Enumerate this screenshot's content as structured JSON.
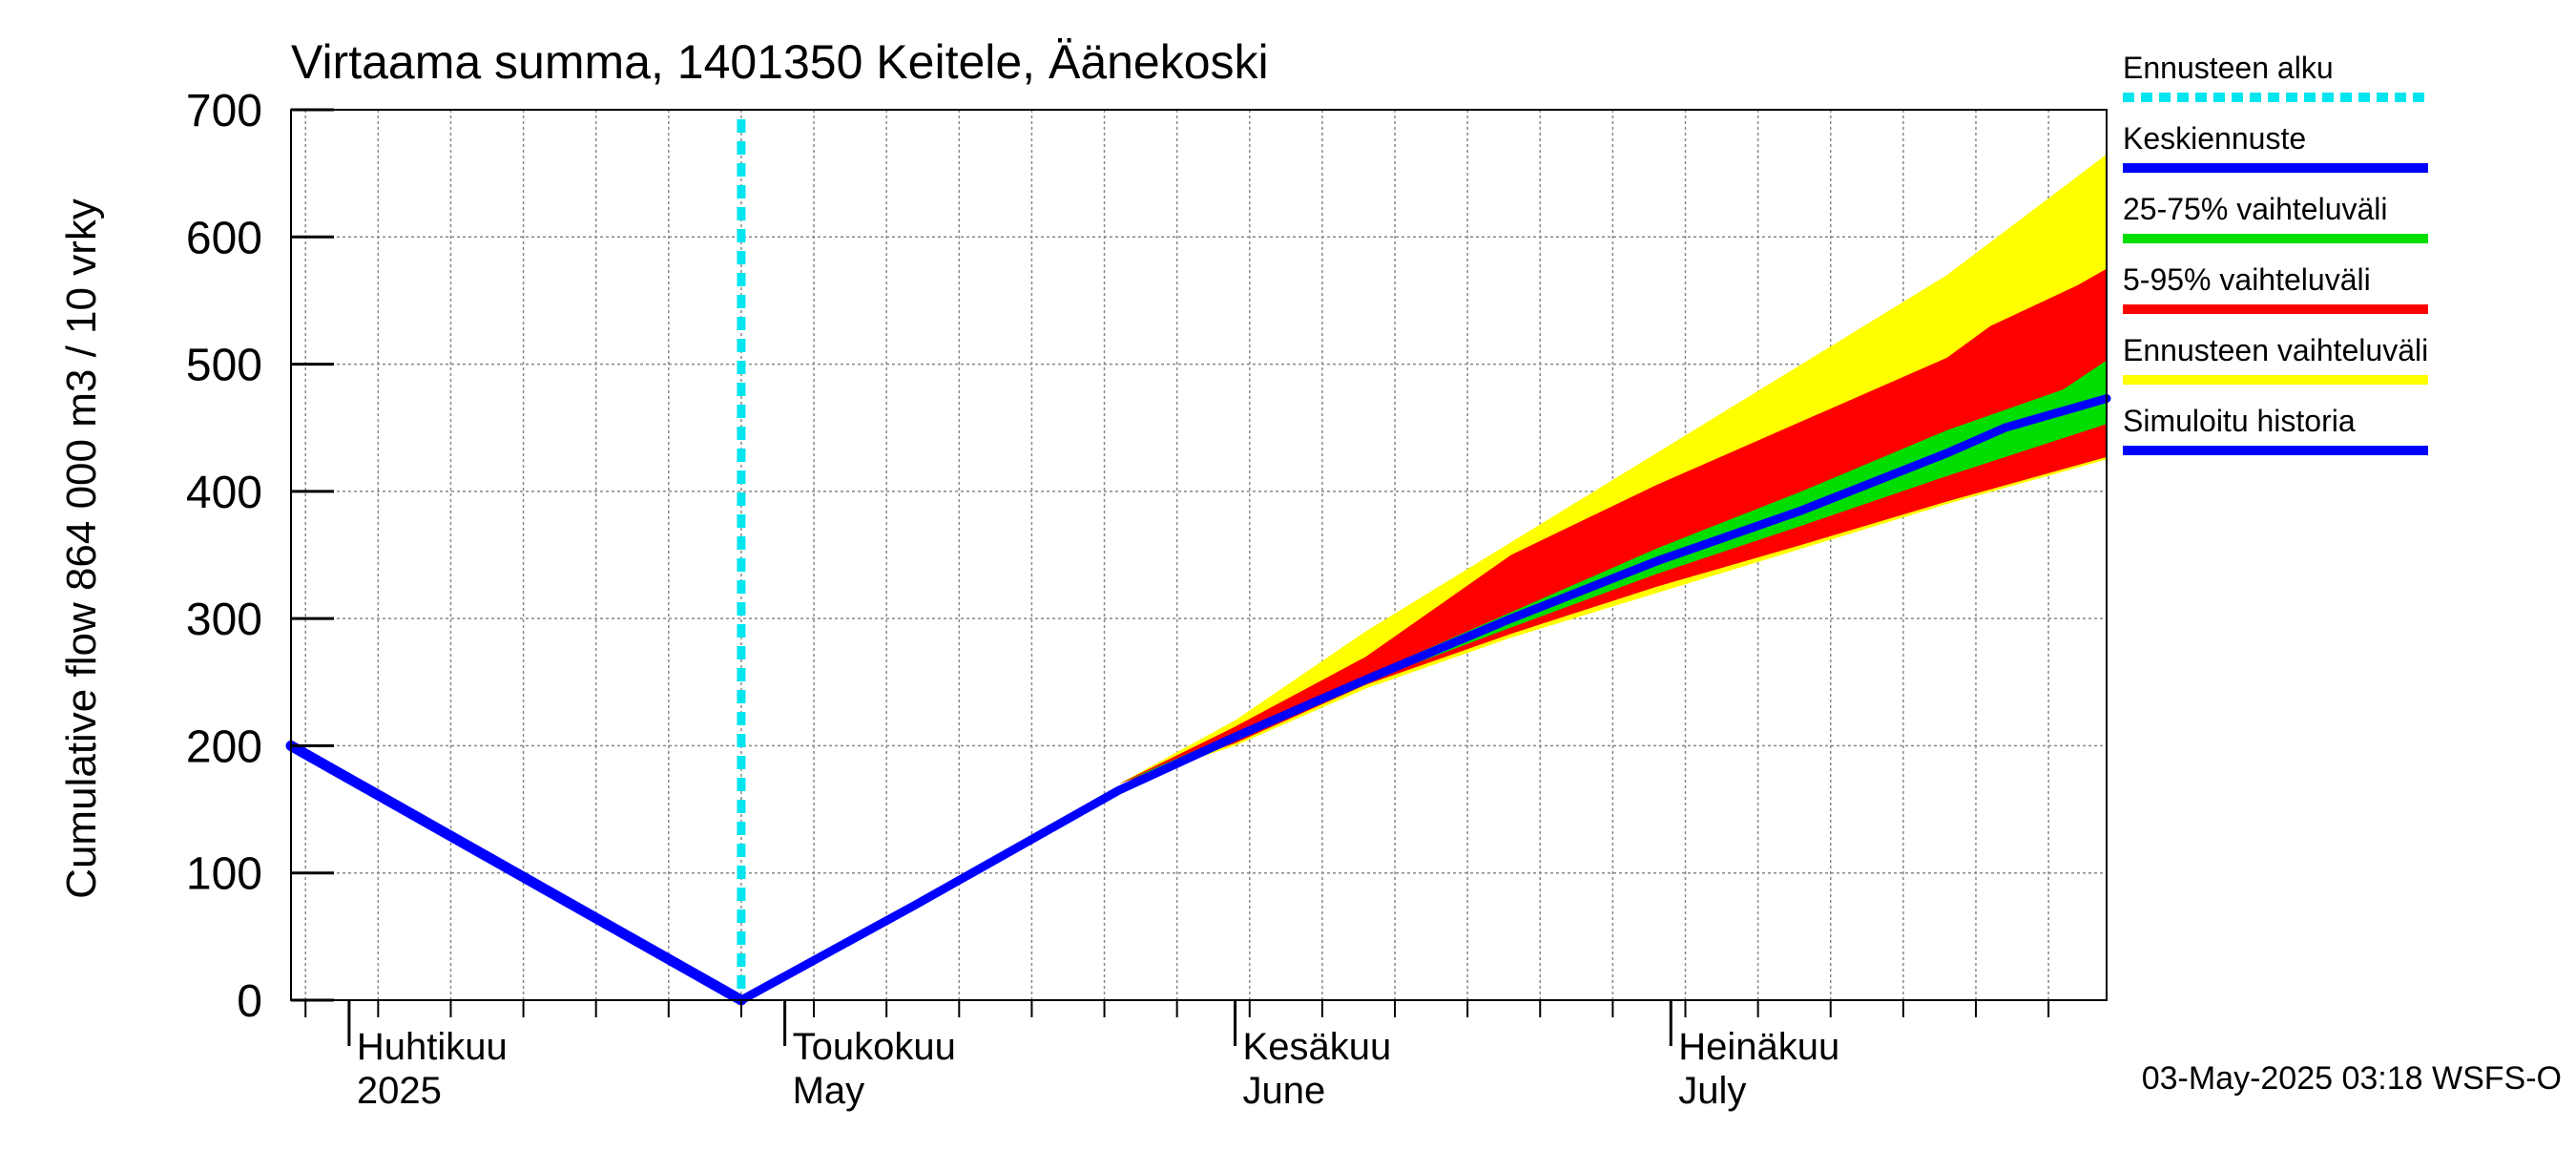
{
  "chart_data": {
    "type": "area",
    "title": "Virtaama summa, 1401350 Keitele, Äänekoski",
    "ylabel": "Cumulative flow    864 000 m3 / 10 vrky",
    "ylim": [
      0,
      700
    ],
    "yticks": [
      0,
      100,
      200,
      300,
      400,
      500,
      600,
      700
    ],
    "xlim": [
      "2025-03-28",
      "2025-07-31"
    ],
    "month_labels": [
      {
        "date": "2025-04-01",
        "line1": "Huhtikuu",
        "line2": "2025"
      },
      {
        "date": "2025-05-01",
        "line1": "Toukokuu",
        "line2": "May"
      },
      {
        "date": "2025-06-01",
        "line1": "Kesäkuu",
        "line2": "June"
      },
      {
        "date": "2025-07-01",
        "line1": "Heinäkuu",
        "line2": "July"
      }
    ],
    "grid": true,
    "legend_position": "right",
    "legend": [
      {
        "label": "Ennusteen alku",
        "color": "#00e5ee",
        "style": "dotted"
      },
      {
        "label": "Keskiennuste",
        "color": "#0000ff",
        "style": "solid"
      },
      {
        "label": "25-75% vaihteluväli",
        "color": "#00dd00",
        "style": "solid"
      },
      {
        "label": "5-95% vaihteluväli",
        "color": "#ff0000",
        "style": "solid"
      },
      {
        "label": "Ennusteen vaihteluväli",
        "color": "#ffff00",
        "style": "solid"
      },
      {
        "label": "Simuloitu historia",
        "color": "#0000ff",
        "style": "solid"
      }
    ],
    "forecast_start": "2025-04-28",
    "history": {
      "name": "Simuloitu historia",
      "color": "#0000ff",
      "points": [
        [
          "2025-03-28",
          200
        ],
        [
          "2025-04-28",
          0
        ]
      ]
    },
    "bands": [
      {
        "name": "Ennusteen vaihteluväli",
        "color": "#ffff00",
        "upper": [
          [
            "2025-04-28",
            0
          ],
          [
            "2025-05-24",
            170
          ],
          [
            "2025-06-01",
            220
          ],
          [
            "2025-06-10",
            290
          ],
          [
            "2025-06-20",
            360
          ],
          [
            "2025-06-30",
            430
          ],
          [
            "2025-07-10",
            500
          ],
          [
            "2025-07-20",
            570
          ],
          [
            "2025-07-31",
            665
          ]
        ],
        "lower": [
          [
            "2025-04-28",
            0
          ],
          [
            "2025-05-24",
            170
          ],
          [
            "2025-06-01",
            200
          ],
          [
            "2025-06-10",
            245
          ],
          [
            "2025-06-20",
            285
          ],
          [
            "2025-06-30",
            320
          ],
          [
            "2025-07-10",
            355
          ],
          [
            "2025-07-20",
            390
          ],
          [
            "2025-07-31",
            425
          ]
        ]
      },
      {
        "name": "5-95% vaihteluväli",
        "color": "#ff0000",
        "upper": [
          [
            "2025-04-28",
            0
          ],
          [
            "2025-05-24",
            170
          ],
          [
            "2025-06-01",
            215
          ],
          [
            "2025-06-10",
            270
          ],
          [
            "2025-06-15",
            310
          ],
          [
            "2025-06-20",
            350
          ],
          [
            "2025-06-30",
            405
          ],
          [
            "2025-07-10",
            455
          ],
          [
            "2025-07-20",
            505
          ],
          [
            "2025-07-23",
            530
          ],
          [
            "2025-07-29",
            562
          ],
          [
            "2025-07-31",
            575
          ]
        ],
        "lower": [
          [
            "2025-04-28",
            0
          ],
          [
            "2025-05-24",
            170
          ],
          [
            "2025-06-01",
            202
          ],
          [
            "2025-06-10",
            248
          ],
          [
            "2025-06-20",
            288
          ],
          [
            "2025-06-30",
            325
          ],
          [
            "2025-07-10",
            358
          ],
          [
            "2025-07-20",
            392
          ],
          [
            "2025-07-31",
            427
          ]
        ]
      },
      {
        "name": "25-75% vaihteluväli",
        "color": "#00dd00",
        "upper": [
          [
            "2025-04-28",
            0
          ],
          [
            "2025-05-24",
            170
          ],
          [
            "2025-06-01",
            210
          ],
          [
            "2025-06-10",
            255
          ],
          [
            "2025-06-20",
            305
          ],
          [
            "2025-06-30",
            355
          ],
          [
            "2025-07-10",
            400
          ],
          [
            "2025-07-20",
            448
          ],
          [
            "2025-07-28",
            480
          ],
          [
            "2025-07-31",
            503
          ]
        ],
        "lower": [
          [
            "2025-04-28",
            0
          ],
          [
            "2025-05-24",
            170
          ],
          [
            "2025-06-01",
            207
          ],
          [
            "2025-06-10",
            250
          ],
          [
            "2025-06-20",
            293
          ],
          [
            "2025-06-30",
            335
          ],
          [
            "2025-07-10",
            373
          ],
          [
            "2025-07-20",
            412
          ],
          [
            "2025-07-31",
            453
          ]
        ]
      }
    ],
    "series": [
      {
        "name": "Keskiennuste",
        "color": "#0000ff",
        "points": [
          [
            "2025-04-28",
            0
          ],
          [
            "2025-05-10",
            75
          ],
          [
            "2025-05-24",
            165
          ],
          [
            "2025-06-01",
            207
          ],
          [
            "2025-06-10",
            252
          ],
          [
            "2025-06-20",
            300
          ],
          [
            "2025-06-30",
            345
          ],
          [
            "2025-07-10",
            385
          ],
          [
            "2025-07-20",
            430
          ],
          [
            "2025-07-24",
            450
          ],
          [
            "2025-07-31",
            473
          ]
        ]
      }
    ],
    "footer": "03-May-2025 03:18 WSFS-O"
  }
}
